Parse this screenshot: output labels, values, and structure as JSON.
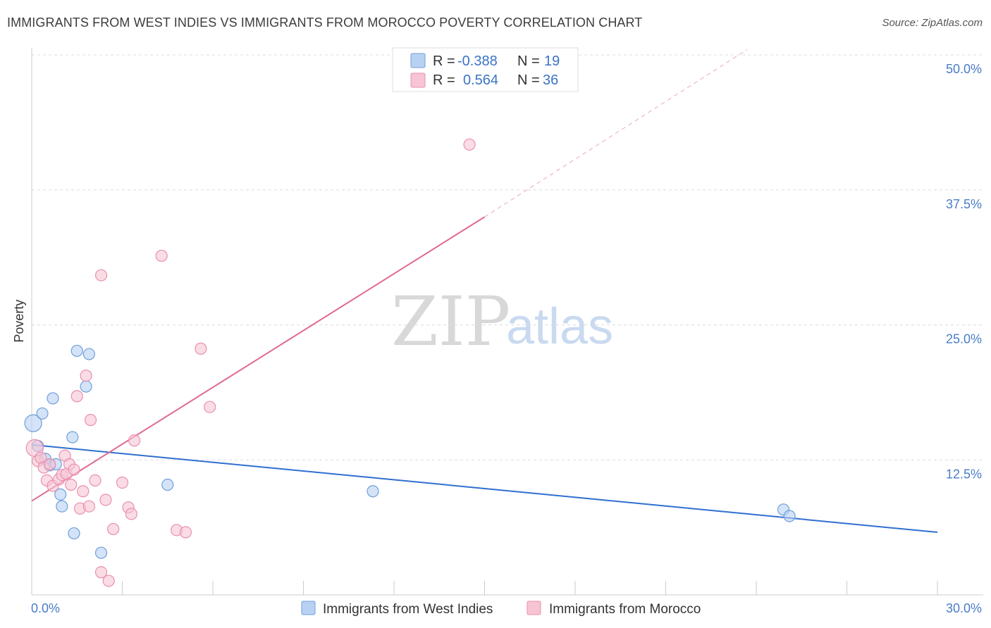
{
  "header": {
    "title": "IMMIGRANTS FROM WEST INDIES VS IMMIGRANTS FROM MOROCCO POVERTY CORRELATION CHART",
    "source": "Source: ZipAtlas.com"
  },
  "watermark": {
    "zip": "ZIP",
    "atlas": "atlas"
  },
  "legend_box": {
    "rows": [
      {
        "r_label": "R =",
        "r_value": "-0.388",
        "n_label": "N =",
        "n_value": "19"
      },
      {
        "r_label": "R =",
        "r_value": "0.564",
        "n_label": "N =",
        "n_value": "36"
      }
    ]
  },
  "colors": {
    "west_indies_fill": "#b8d1f3",
    "west_indies_stroke": "#6f9fd8",
    "west_indies_line": "#2f6fd0",
    "morocco_fill": "#f7c4d4",
    "morocco_stroke": "#e98fae",
    "morocco_line": "#e06a93"
  },
  "chart_data": {
    "type": "scatter",
    "title": "IMMIGRANTS FROM WEST INDIES VS IMMIGRANTS FROM MOROCCO POVERTY CORRELATION CHART",
    "xlabel": "",
    "ylabel": "Poverty",
    "xlim": [
      0,
      30
    ],
    "ylim": [
      0,
      50
    ],
    "x_tick_labels": [
      "0.0%",
      "30.0%"
    ],
    "y_ticks": [
      12.5,
      25.0,
      37.5,
      50.0
    ],
    "y_tick_labels": [
      "12.5%",
      "25.0%",
      "37.5%",
      "50.0%"
    ],
    "series": [
      {
        "name": "Immigrants from West Indies",
        "points": [
          {
            "x": 0.05,
            "y": 15.9,
            "s": 2
          },
          {
            "x": 0.2,
            "y": 13.8,
            "s": 1
          },
          {
            "x": 0.35,
            "y": 16.8,
            "s": 1
          },
          {
            "x": 0.45,
            "y": 12.6,
            "s": 1
          },
          {
            "x": 0.6,
            "y": 12.0,
            "s": 1
          },
          {
            "x": 0.7,
            "y": 18.2,
            "s": 1
          },
          {
            "x": 0.8,
            "y": 12.1,
            "s": 1
          },
          {
            "x": 0.95,
            "y": 9.3,
            "s": 1
          },
          {
            "x": 1.0,
            "y": 8.2,
            "s": 1
          },
          {
            "x": 1.35,
            "y": 14.6,
            "s": 1
          },
          {
            "x": 1.4,
            "y": 5.7,
            "s": 1
          },
          {
            "x": 1.5,
            "y": 22.6,
            "s": 1
          },
          {
            "x": 1.8,
            "y": 19.3,
            "s": 1
          },
          {
            "x": 1.9,
            "y": 22.3,
            "s": 1
          },
          {
            "x": 2.3,
            "y": 3.9,
            "s": 1
          },
          {
            "x": 4.5,
            "y": 10.2,
            "s": 1
          },
          {
            "x": 11.3,
            "y": 9.6,
            "s": 1
          },
          {
            "x": 24.9,
            "y": 7.9,
            "s": 1
          },
          {
            "x": 25.1,
            "y": 7.3,
            "s": 1
          }
        ],
        "trend": {
          "x0": 0,
          "y0": 13.9,
          "x1": 30,
          "y1": 5.8
        }
      },
      {
        "name": "Immigrants from Morocco",
        "points": [
          {
            "x": 0.1,
            "y": 13.6,
            "s": 2
          },
          {
            "x": 0.2,
            "y": 12.4,
            "s": 1
          },
          {
            "x": 0.3,
            "y": 12.7,
            "s": 1
          },
          {
            "x": 0.4,
            "y": 11.8,
            "s": 1
          },
          {
            "x": 0.5,
            "y": 10.6,
            "s": 1
          },
          {
            "x": 0.6,
            "y": 12.1,
            "s": 1
          },
          {
            "x": 0.7,
            "y": 10.1,
            "s": 1
          },
          {
            "x": 0.9,
            "y": 10.7,
            "s": 1
          },
          {
            "x": 1.0,
            "y": 11.1,
            "s": 1
          },
          {
            "x": 1.1,
            "y": 12.9,
            "s": 1
          },
          {
            "x": 1.15,
            "y": 11.2,
            "s": 1
          },
          {
            "x": 1.25,
            "y": 12.1,
            "s": 1
          },
          {
            "x": 1.3,
            "y": 10.2,
            "s": 1
          },
          {
            "x": 1.4,
            "y": 11.6,
            "s": 1
          },
          {
            "x": 1.5,
            "y": 18.4,
            "s": 1
          },
          {
            "x": 1.6,
            "y": 8.0,
            "s": 1
          },
          {
            "x": 1.7,
            "y": 9.6,
            "s": 1
          },
          {
            "x": 1.8,
            "y": 20.3,
            "s": 1
          },
          {
            "x": 1.9,
            "y": 8.2,
            "s": 1
          },
          {
            "x": 1.95,
            "y": 16.2,
            "s": 1
          },
          {
            "x": 2.1,
            "y": 10.6,
            "s": 1
          },
          {
            "x": 2.3,
            "y": 2.1,
            "s": 1
          },
          {
            "x": 2.3,
            "y": 29.6,
            "s": 1
          },
          {
            "x": 2.45,
            "y": 8.8,
            "s": 1
          },
          {
            "x": 2.55,
            "y": 1.3,
            "s": 1
          },
          {
            "x": 2.7,
            "y": 6.1,
            "s": 1
          },
          {
            "x": 3.0,
            "y": 10.4,
            "s": 1
          },
          {
            "x": 3.2,
            "y": 8.1,
            "s": 1
          },
          {
            "x": 3.3,
            "y": 7.5,
            "s": 1
          },
          {
            "x": 3.4,
            "y": 14.3,
            "s": 1
          },
          {
            "x": 4.3,
            "y": 31.4,
            "s": 1
          },
          {
            "x": 4.8,
            "y": 6.0,
            "s": 1
          },
          {
            "x": 5.1,
            "y": 5.8,
            "s": 1
          },
          {
            "x": 5.6,
            "y": 22.8,
            "s": 1
          },
          {
            "x": 5.9,
            "y": 17.4,
            "s": 1
          },
          {
            "x": 14.5,
            "y": 41.7,
            "s": 1
          }
        ],
        "trend": {
          "x0": 0,
          "y0": 8.7,
          "x1": 15.0,
          "y1": 35.0,
          "dash_x1": 23.7,
          "dash_y1": 50.5
        }
      }
    ],
    "legend": [
      "Immigrants from West Indies",
      "Immigrants from Morocco"
    ],
    "legend_position": "bottom-center"
  }
}
